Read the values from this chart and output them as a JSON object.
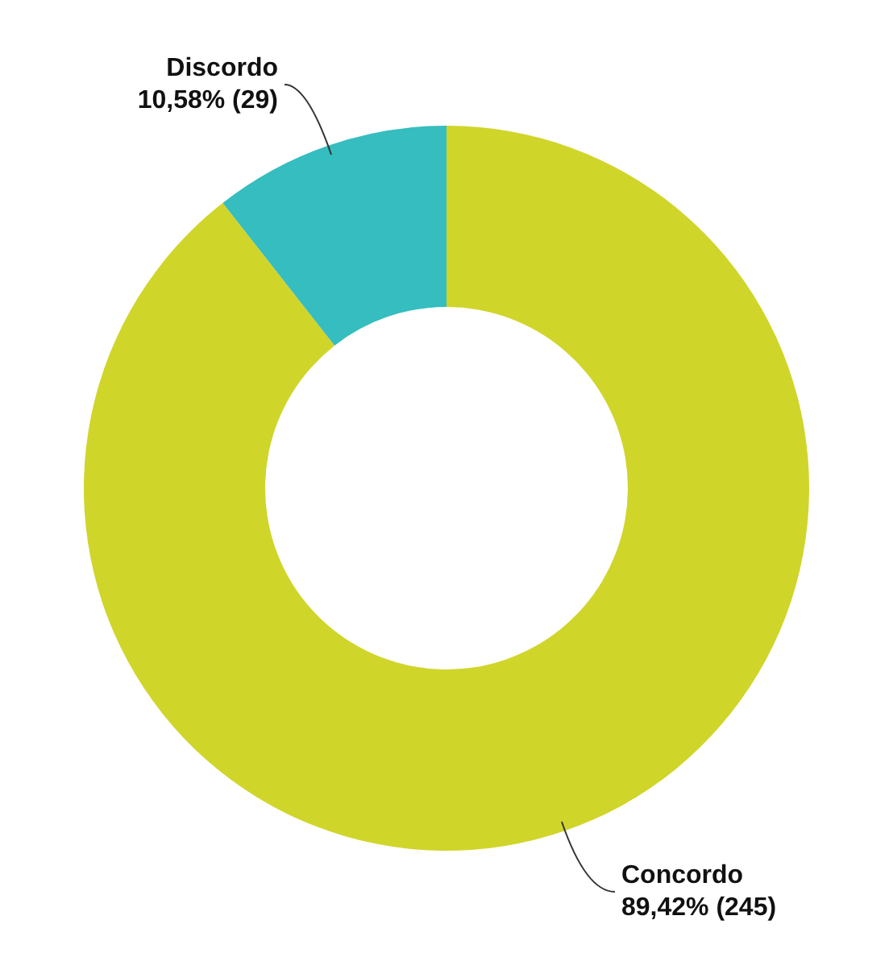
{
  "chart_data": {
    "type": "donut",
    "categories": [
      "Concordo",
      "Discordo"
    ],
    "values": [
      245,
      29
    ],
    "colors": [
      "#d0d52a",
      "#35bdbf"
    ],
    "value_labels": [
      "89,42% (245)",
      "10,58% (29)"
    ],
    "legend": false
  }
}
